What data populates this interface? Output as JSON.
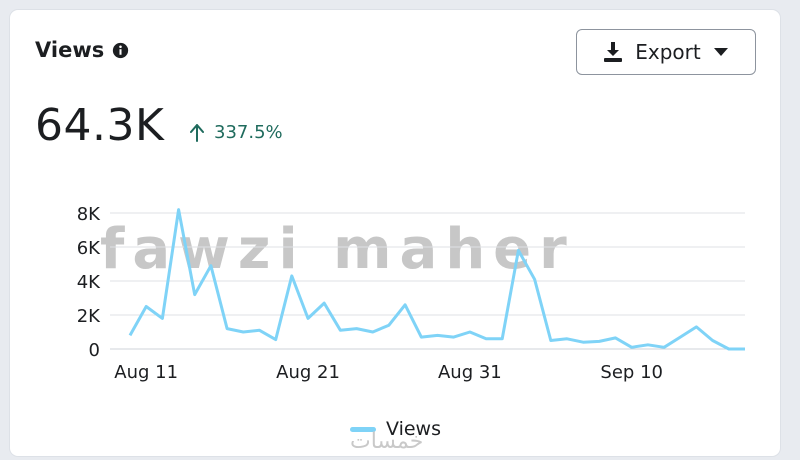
{
  "card": {
    "title": "Views",
    "export_label": "Export",
    "metric_value": "64.3K",
    "change": "337.5%"
  },
  "watermark": {
    "main": "fawzi maher",
    "sub": "خمسات"
  },
  "colors": {
    "line": "#7fd3f7",
    "change": "#1f6b5d"
  },
  "icons": {
    "info": "info-icon",
    "export": "download-icon",
    "dropdown": "caret-down-icon",
    "change": "arrow-up-icon"
  },
  "chart_data": {
    "type": "line",
    "x": [
      "Aug 10",
      "Aug 11",
      "Aug 12",
      "Aug 13",
      "Aug 14",
      "Aug 15",
      "Aug 16",
      "Aug 17",
      "Aug 18",
      "Aug 19",
      "Aug 20",
      "Aug 21",
      "Aug 22",
      "Aug 23",
      "Aug 24",
      "Aug 25",
      "Aug 26",
      "Aug 27",
      "Aug 28",
      "Aug 29",
      "Aug 30",
      "Aug 31",
      "Sep 1",
      "Sep 2",
      "Sep 3",
      "Sep 4",
      "Sep 5",
      "Sep 6",
      "Sep 7",
      "Sep 8",
      "Sep 9",
      "Sep 10",
      "Sep 11",
      "Sep 12",
      "Sep 13",
      "Sep 14",
      "Sep 15",
      "Sep 16",
      "Sep 17"
    ],
    "x_tick_labels": [
      "Aug 11",
      "Aug 21",
      "Aug 31",
      "Sep 10"
    ],
    "series": [
      {
        "name": "Views",
        "values": [
          800,
          2500,
          1800,
          8200,
          3200,
          4900,
          1200,
          1000,
          1100,
          550,
          4300,
          1800,
          2700,
          1100,
          1200,
          1000,
          1400,
          2600,
          700,
          800,
          700,
          1000,
          600,
          600,
          5800,
          4100,
          500,
          600,
          400,
          450,
          650,
          100,
          250,
          100,
          700,
          1300,
          500,
          0,
          0
        ]
      }
    ],
    "y_ticks": [
      "0",
      "2K",
      "4K",
      "6K",
      "8K"
    ],
    "ylim": [
      0,
      8000
    ],
    "grid": true,
    "legend": "bottom"
  }
}
